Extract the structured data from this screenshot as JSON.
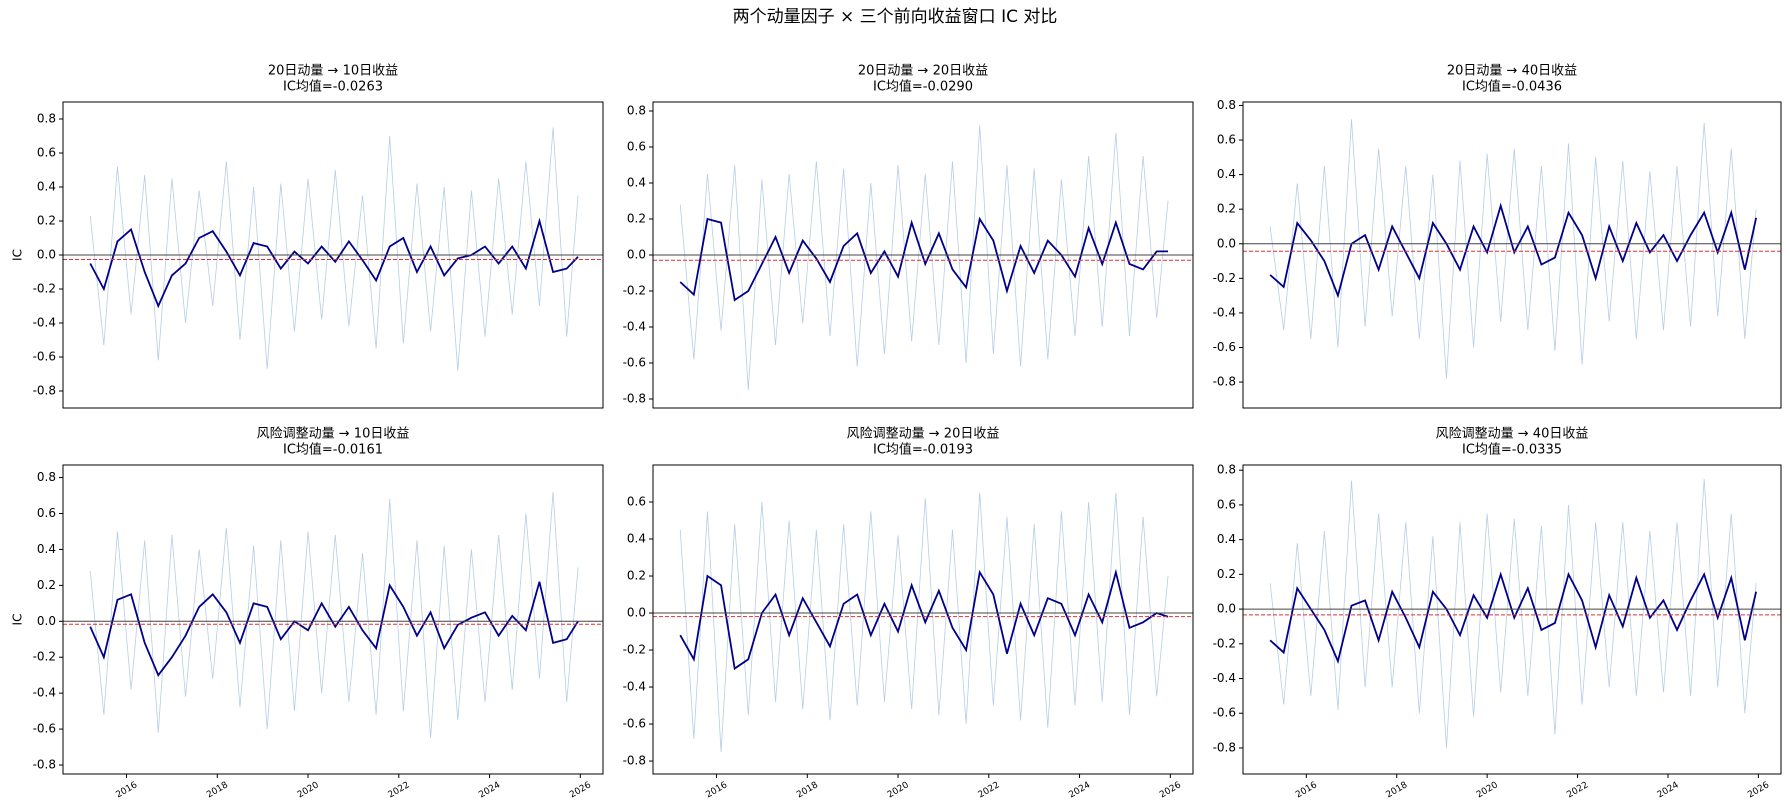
{
  "title": "两个动量因子 × 三个前向收益窗口 IC 对比",
  "chart_data": [
    {
      "type": "line",
      "title": "20日动量 → 10日收益",
      "subtitle": "IC均值=-0.0263",
      "ylabel": "IC",
      "x": [
        2015.2,
        2015.5,
        2015.8,
        2016.1,
        2016.4,
        2016.7,
        2017.0,
        2017.3,
        2017.6,
        2017.9,
        2018.2,
        2018.5,
        2018.8,
        2019.1,
        2019.4,
        2019.7,
        2020.0,
        2020.3,
        2020.6,
        2020.9,
        2021.2,
        2021.5,
        2021.8,
        2022.1,
        2022.4,
        2022.7,
        2023.0,
        2023.3,
        2023.6,
        2023.9,
        2024.2,
        2024.5,
        2024.8,
        2025.1,
        2025.4,
        2025.7,
        2025.95
      ],
      "series": [
        {
          "color": "#a9c6e0",
          "values": [
            0.23,
            -0.53,
            0.52,
            -0.35,
            0.47,
            -0.62,
            0.45,
            -0.4,
            0.38,
            -0.3,
            0.55,
            -0.5,
            0.4,
            -0.67,
            0.42,
            -0.45,
            0.45,
            -0.38,
            0.5,
            -0.42,
            0.35,
            -0.55,
            0.7,
            -0.52,
            0.42,
            -0.45,
            0.4,
            -0.68,
            0.38,
            -0.48,
            0.45,
            -0.35,
            0.55,
            -0.3,
            0.75,
            -0.48,
            0.35
          ]
        },
        {
          "color": "#00008b",
          "values": [
            -0.05,
            -0.2,
            0.08,
            0.15,
            -0.1,
            -0.3,
            -0.12,
            -0.05,
            0.1,
            0.14,
            0.02,
            -0.12,
            0.07,
            0.05,
            -0.08,
            0.02,
            -0.05,
            0.05,
            -0.04,
            0.08,
            -0.03,
            -0.15,
            0.05,
            0.1,
            -0.1,
            0.05,
            -0.12,
            -0.02,
            0.0,
            0.05,
            -0.05,
            0.05,
            -0.08,
            0.2,
            -0.1,
            -0.08,
            -0.01
          ]
        }
      ],
      "mean": -0.0263,
      "mean_color": "#e03030",
      "hline": 0,
      "xlim": [
        2014.6,
        2026.5
      ],
      "ylim": [
        -0.9,
        0.9
      ],
      "yticks": [
        -0.8,
        -0.6,
        -0.4,
        -0.2,
        {
          "value": 0,
          "label": "0.0"
        },
        0.2,
        0.4,
        0.6,
        0.8
      ]
    },
    {
      "type": "line",
      "title": "20日动量 → 20日收益",
      "subtitle": "IC均值=-0.0290",
      "x": [
        2015.2,
        2015.5,
        2015.8,
        2016.1,
        2016.4,
        2016.7,
        2017.0,
        2017.3,
        2017.6,
        2017.9,
        2018.2,
        2018.5,
        2018.8,
        2019.1,
        2019.4,
        2019.7,
        2020.0,
        2020.3,
        2020.6,
        2020.9,
        2021.2,
        2021.5,
        2021.8,
        2022.1,
        2022.4,
        2022.7,
        2023.0,
        2023.3,
        2023.6,
        2023.9,
        2024.2,
        2024.5,
        2024.8,
        2025.1,
        2025.4,
        2025.7,
        2025.95
      ],
      "series": [
        {
          "color": "#a9c6e0",
          "values": [
            0.28,
            -0.58,
            0.45,
            -0.42,
            0.5,
            -0.75,
            0.42,
            -0.5,
            0.45,
            -0.38,
            0.52,
            -0.45,
            0.48,
            -0.62,
            0.4,
            -0.55,
            0.5,
            -0.48,
            0.45,
            -0.5,
            0.52,
            -0.6,
            0.72,
            -0.55,
            0.5,
            -0.62,
            0.48,
            -0.58,
            0.42,
            -0.45,
            0.55,
            -0.4,
            0.68,
            -0.45,
            0.55,
            -0.35,
            0.3
          ]
        },
        {
          "color": "#00008b",
          "values": [
            -0.15,
            -0.22,
            0.2,
            0.18,
            -0.25,
            -0.2,
            -0.05,
            0.1,
            -0.1,
            0.08,
            -0.02,
            -0.15,
            0.05,
            0.12,
            -0.1,
            0.02,
            -0.12,
            0.18,
            -0.05,
            0.12,
            -0.08,
            -0.18,
            0.2,
            0.08,
            -0.2,
            0.05,
            -0.1,
            0.08,
            0.0,
            -0.12,
            0.15,
            -0.05,
            0.18,
            -0.05,
            -0.08,
            0.02,
            0.02
          ]
        }
      ],
      "mean": -0.029,
      "mean_color": "#e03030",
      "hline": 0,
      "xlim": [
        2014.6,
        2026.5
      ],
      "ylim": [
        -0.85,
        0.85
      ],
      "yticks": [
        -0.8,
        -0.6,
        -0.4,
        -0.2,
        {
          "value": 0,
          "label": "0.0"
        },
        0.2,
        0.4,
        0.6,
        0.8
      ]
    },
    {
      "type": "line",
      "title": "20日动量 → 40日收益",
      "subtitle": "IC均值=-0.0436",
      "x": [
        2015.2,
        2015.5,
        2015.8,
        2016.1,
        2016.4,
        2016.7,
        2017.0,
        2017.3,
        2017.6,
        2017.9,
        2018.2,
        2018.5,
        2018.8,
        2019.1,
        2019.4,
        2019.7,
        2020.0,
        2020.3,
        2020.6,
        2020.9,
        2021.2,
        2021.5,
        2021.8,
        2022.1,
        2022.4,
        2022.7,
        2023.0,
        2023.3,
        2023.6,
        2023.9,
        2024.2,
        2024.5,
        2024.8,
        2025.1,
        2025.4,
        2025.7,
        2025.95
      ],
      "series": [
        {
          "color": "#a9c6e0",
          "values": [
            0.1,
            -0.5,
            0.35,
            -0.55,
            0.45,
            -0.6,
            0.72,
            -0.48,
            0.55,
            -0.42,
            0.45,
            -0.55,
            0.4,
            -0.78,
            0.48,
            -0.6,
            0.52,
            -0.45,
            0.55,
            -0.5,
            0.45,
            -0.62,
            0.58,
            -0.7,
            0.5,
            -0.45,
            0.48,
            -0.55,
            0.42,
            -0.5,
            0.45,
            -0.48,
            0.7,
            -0.42,
            0.55,
            -0.55,
            0.2
          ]
        },
        {
          "color": "#00008b",
          "values": [
            -0.18,
            -0.25,
            0.12,
            0.02,
            -0.1,
            -0.3,
            0.0,
            0.05,
            -0.15,
            0.1,
            -0.05,
            -0.2,
            0.12,
            0.0,
            -0.15,
            0.1,
            -0.05,
            0.22,
            -0.05,
            0.1,
            -0.12,
            -0.08,
            0.18,
            0.05,
            -0.2,
            0.1,
            -0.1,
            0.12,
            -0.05,
            0.05,
            -0.1,
            0.05,
            0.18,
            -0.05,
            0.18,
            -0.15,
            0.15
          ]
        }
      ],
      "mean": -0.0436,
      "mean_color": "#e03030",
      "hline": 0,
      "xlim": [
        2014.6,
        2026.5
      ],
      "ylim": [
        -0.95,
        0.82
      ],
      "yticks": [
        -0.8,
        -0.6,
        -0.4,
        -0.2,
        {
          "value": 0,
          "label": "0.0"
        },
        0.2,
        0.4,
        0.6,
        0.8
      ]
    },
    {
      "type": "line",
      "title": "风险调整动量 → 10日收益",
      "subtitle": "IC均值=-0.0161",
      "ylabel": "IC",
      "x": [
        2015.2,
        2015.5,
        2015.8,
        2016.1,
        2016.4,
        2016.7,
        2017.0,
        2017.3,
        2017.6,
        2017.9,
        2018.2,
        2018.5,
        2018.8,
        2019.1,
        2019.4,
        2019.7,
        2020.0,
        2020.3,
        2020.6,
        2020.9,
        2021.2,
        2021.5,
        2021.8,
        2022.1,
        2022.4,
        2022.7,
        2023.0,
        2023.3,
        2023.6,
        2023.9,
        2024.2,
        2024.5,
        2024.8,
        2025.1,
        2025.4,
        2025.7,
        2025.95
      ],
      "series": [
        {
          "color": "#a9c6e0",
          "values": [
            0.28,
            -0.52,
            0.5,
            -0.38,
            0.45,
            -0.62,
            0.48,
            -0.42,
            0.4,
            -0.32,
            0.52,
            -0.48,
            0.42,
            -0.6,
            0.45,
            -0.5,
            0.5,
            -0.4,
            0.48,
            -0.45,
            0.38,
            -0.52,
            0.68,
            -0.5,
            0.45,
            -0.65,
            0.42,
            -0.55,
            0.4,
            -0.45,
            0.48,
            -0.38,
            0.6,
            -0.32,
            0.72,
            -0.45,
            0.3
          ]
        },
        {
          "color": "#00008b",
          "values": [
            -0.03,
            -0.2,
            0.12,
            0.15,
            -0.12,
            -0.3,
            -0.2,
            -0.08,
            0.08,
            0.15,
            0.05,
            -0.12,
            0.1,
            0.08,
            -0.1,
            0.0,
            -0.05,
            0.1,
            -0.03,
            0.08,
            -0.05,
            -0.15,
            0.2,
            0.08,
            -0.08,
            0.05,
            -0.15,
            -0.02,
            0.02,
            0.05,
            -0.08,
            0.03,
            -0.05,
            0.22,
            -0.12,
            -0.1,
            0.0
          ]
        }
      ],
      "mean": -0.0161,
      "mean_color": "#e03030",
      "hline": 0,
      "xlim": [
        2014.6,
        2026.5
      ],
      "ylim": [
        -0.85,
        0.87
      ],
      "yticks": [
        -0.8,
        -0.6,
        -0.4,
        -0.2,
        {
          "value": 0,
          "label": "0.0"
        },
        0.2,
        0.4,
        0.6,
        0.8
      ],
      "xticks": [
        2016,
        2018,
        2020,
        2022,
        2024,
        2026
      ]
    },
    {
      "type": "line",
      "title": "风险调整动量 → 20日收益",
      "subtitle": "IC均值=-0.0193",
      "x": [
        2015.2,
        2015.5,
        2015.8,
        2016.1,
        2016.4,
        2016.7,
        2017.0,
        2017.3,
        2017.6,
        2017.9,
        2018.2,
        2018.5,
        2018.8,
        2019.1,
        2019.4,
        2019.7,
        2020.0,
        2020.3,
        2020.6,
        2020.9,
        2021.2,
        2021.5,
        2021.8,
        2022.1,
        2022.4,
        2022.7,
        2023.0,
        2023.3,
        2023.6,
        2023.9,
        2024.2,
        2024.5,
        2024.8,
        2025.1,
        2025.4,
        2025.7,
        2025.95
      ],
      "series": [
        {
          "color": "#a9c6e0",
          "values": [
            0.45,
            -0.68,
            0.55,
            -0.75,
            0.48,
            -0.55,
            0.6,
            -0.48,
            0.5,
            -0.52,
            0.45,
            -0.58,
            0.48,
            -0.5,
            0.55,
            -0.48,
            0.42,
            -0.52,
            0.62,
            -0.55,
            0.45,
            -0.6,
            0.65,
            -0.5,
            0.52,
            -0.58,
            0.48,
            -0.62,
            0.55,
            -0.5,
            0.6,
            -0.48,
            0.65,
            -0.55,
            0.52,
            -0.45,
            0.2
          ]
        },
        {
          "color": "#00008b",
          "values": [
            -0.12,
            -0.25,
            0.2,
            0.15,
            -0.3,
            -0.25,
            0.0,
            0.1,
            -0.12,
            0.08,
            -0.05,
            -0.18,
            0.05,
            0.1,
            -0.12,
            0.05,
            -0.1,
            0.15,
            -0.05,
            0.12,
            -0.08,
            -0.2,
            0.22,
            0.1,
            -0.22,
            0.05,
            -0.12,
            0.08,
            0.05,
            -0.12,
            0.1,
            -0.05,
            0.22,
            -0.08,
            -0.05,
            0.0,
            -0.02
          ]
        }
      ],
      "mean": -0.0193,
      "mean_color": "#e03030",
      "hline": 0,
      "xlim": [
        2014.6,
        2026.5
      ],
      "ylim": [
        -0.87,
        0.8
      ],
      "yticks": [
        -0.8,
        -0.6,
        -0.4,
        -0.2,
        {
          "value": 0,
          "label": "0.0"
        },
        0.2,
        0.4,
        0.6
      ],
      "xticks": [
        2016,
        2018,
        2020,
        2022,
        2024,
        2026
      ]
    },
    {
      "type": "line",
      "title": "风险调整动量 → 40日收益",
      "subtitle": "IC均值=-0.0335",
      "x": [
        2015.2,
        2015.5,
        2015.8,
        2016.1,
        2016.4,
        2016.7,
        2017.0,
        2017.3,
        2017.6,
        2017.9,
        2018.2,
        2018.5,
        2018.8,
        2019.1,
        2019.4,
        2019.7,
        2020.0,
        2020.3,
        2020.6,
        2020.9,
        2021.2,
        2021.5,
        2021.8,
        2022.1,
        2022.4,
        2022.7,
        2023.0,
        2023.3,
        2023.6,
        2023.9,
        2024.2,
        2024.5,
        2024.8,
        2025.1,
        2025.4,
        2025.7,
        2025.95
      ],
      "series": [
        {
          "color": "#a9c6e0",
          "values": [
            0.15,
            -0.55,
            0.38,
            -0.5,
            0.45,
            -0.58,
            0.74,
            -0.45,
            0.55,
            -0.45,
            0.5,
            -0.6,
            0.42,
            -0.8,
            0.5,
            -0.62,
            0.55,
            -0.48,
            0.52,
            -0.5,
            0.48,
            -0.72,
            0.6,
            -0.55,
            0.5,
            -0.45,
            0.5,
            -0.5,
            0.45,
            -0.48,
            0.5,
            -0.5,
            0.75,
            -0.45,
            0.55,
            -0.6,
            0.15
          ]
        },
        {
          "color": "#00008b",
          "values": [
            -0.18,
            -0.25,
            0.12,
            0.0,
            -0.12,
            -0.3,
            0.02,
            0.05,
            -0.18,
            0.1,
            -0.05,
            -0.22,
            0.1,
            0.0,
            -0.15,
            0.08,
            -0.05,
            0.2,
            -0.05,
            0.12,
            -0.12,
            -0.08,
            0.2,
            0.05,
            -0.22,
            0.08,
            -0.1,
            0.18,
            -0.05,
            0.05,
            -0.12,
            0.05,
            0.2,
            -0.05,
            0.18,
            -0.18,
            0.1
          ]
        }
      ],
      "mean": -0.0335,
      "mean_color": "#e03030",
      "hline": 0,
      "xlim": [
        2014.6,
        2026.5
      ],
      "ylim": [
        -0.95,
        0.83
      ],
      "yticks": [
        -0.8,
        -0.6,
        -0.4,
        -0.2,
        {
          "value": 0,
          "label": "0.0"
        },
        0.2,
        0.4,
        0.6,
        0.8
      ],
      "xticks": [
        2016,
        2018,
        2020,
        2022,
        2024,
        2026
      ]
    }
  ]
}
